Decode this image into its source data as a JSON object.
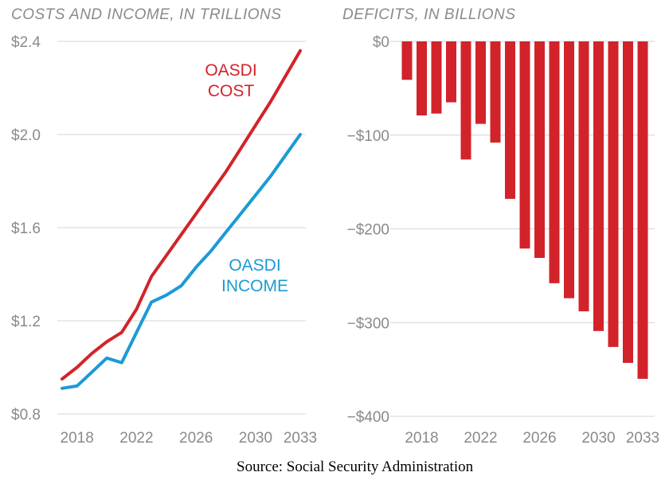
{
  "colors": {
    "cost": "#d2232a",
    "income": "#1b9ad6",
    "deficit": "#d2232a",
    "text": "#8a8a8a",
    "grid": "#d4d4d4"
  },
  "source": "Source: Social Security Administration",
  "chart_data": [
    {
      "type": "line",
      "title": "COSTS AND INCOME, IN TRILLIONS",
      "x": [
        2017,
        2018,
        2019,
        2020,
        2021,
        2022,
        2023,
        2024,
        2025,
        2026,
        2027,
        2028,
        2029,
        2030,
        2031,
        2032,
        2033
      ],
      "series": [
        {
          "name": "OASDI COST",
          "label_lines": [
            "OASDI",
            "COST"
          ],
          "color": "#d2232a",
          "values": [
            0.95,
            1.0,
            1.06,
            1.11,
            1.15,
            1.25,
            1.39,
            1.48,
            1.57,
            1.66,
            1.75,
            1.84,
            1.94,
            2.04,
            2.14,
            2.25,
            2.36
          ]
        },
        {
          "name": "OASDI INCOME",
          "label_lines": [
            "OASDI",
            "INCOME"
          ],
          "color": "#1b9ad6",
          "values": [
            0.91,
            0.92,
            0.98,
            1.04,
            1.02,
            1.15,
            1.28,
            1.31,
            1.35,
            1.43,
            1.5,
            1.58,
            1.66,
            1.74,
            1.82,
            1.91,
            2.0
          ]
        }
      ],
      "ylim": [
        0.8,
        2.4
      ],
      "yticks": [
        0.8,
        1.2,
        1.6,
        2.0,
        2.4
      ],
      "ytick_labels": [
        "$0.8",
        "$1.2",
        "$1.6",
        "$2.0",
        "$2.4"
      ],
      "xticks": [
        2018,
        2022,
        2026,
        2030,
        2033
      ],
      "xtick_labels": [
        "2018",
        "2022",
        "2026",
        "2030",
        "2033"
      ],
      "grid": "horizontal"
    },
    {
      "type": "bar",
      "title": "DEFICITS, IN BILLIONS",
      "categories": [
        2017,
        2018,
        2019,
        2020,
        2021,
        2022,
        2023,
        2024,
        2025,
        2026,
        2027,
        2028,
        2029,
        2030,
        2031,
        2032,
        2033
      ],
      "values": [
        -41,
        -79,
        -77,
        -65,
        -126,
        -88,
        -108,
        -168,
        -221,
        -231,
        -258,
        -274,
        -288,
        -309,
        -326,
        -343,
        -360
      ],
      "ylim": [
        -400,
        0
      ],
      "yticks": [
        0,
        -100,
        -200,
        -300,
        -400
      ],
      "ytick_labels": [
        "$0",
        "−$100",
        "−$200",
        "−$300",
        "−$400"
      ],
      "xticks": [
        2018,
        2022,
        2026,
        2030,
        2033
      ],
      "xtick_labels": [
        "2018",
        "2022",
        "2026",
        "2030",
        "2033"
      ],
      "grid": "horizontal"
    }
  ]
}
